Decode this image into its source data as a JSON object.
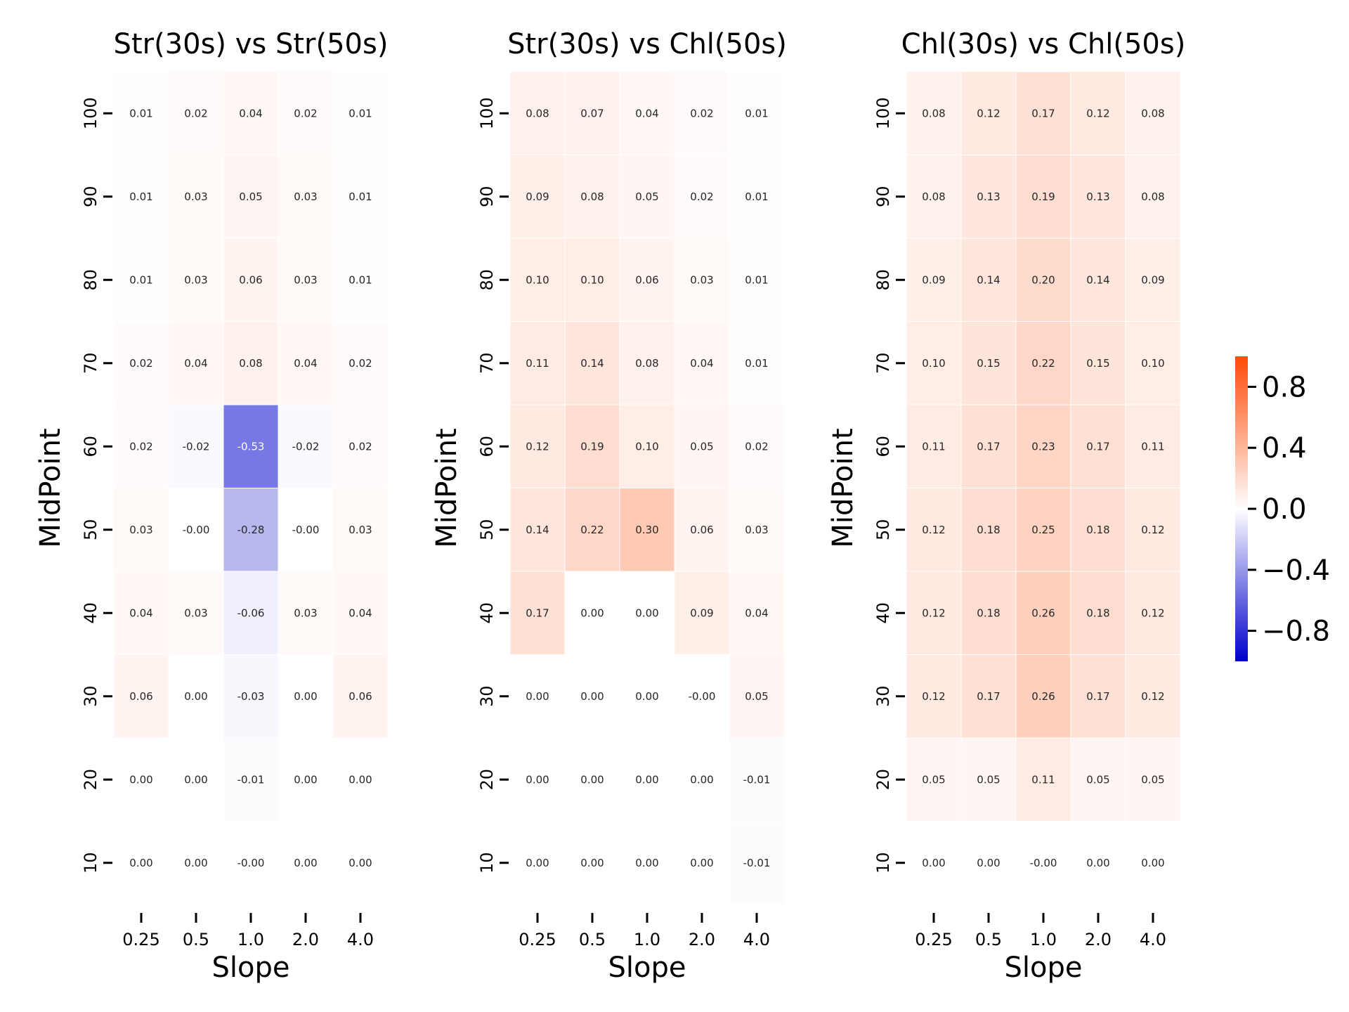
{
  "chart_data": {
    "type": "heatmap",
    "colorscale": {
      "colors": {
        "low": "#0000cc",
        "mid": "#ffffff",
        "high": "#ff4a06"
      },
      "vmin": -1.0,
      "vmax": 1.0,
      "ticks": [
        "0.8",
        "0.4",
        "0.0",
        "−0.4",
        "−0.8"
      ],
      "tick_values": [
        0.8,
        0.4,
        0.0,
        -0.4,
        -0.8
      ]
    },
    "panels": [
      {
        "title": "Str(30s) vs Str(50s)",
        "xlabel": "Slope",
        "ylabel": "MidPoint",
        "x": [
          "0.25",
          "0.5",
          "1.0",
          "2.0",
          "4.0"
        ],
        "y": [
          "100",
          "90",
          "80",
          "70",
          "60",
          "50",
          "40",
          "30",
          "20",
          "10"
        ],
        "values": [
          [
            0.01,
            0.02,
            0.04,
            0.02,
            0.01
          ],
          [
            0.01,
            0.03,
            0.05,
            0.03,
            0.01
          ],
          [
            0.01,
            0.03,
            0.06,
            0.03,
            0.01
          ],
          [
            0.02,
            0.04,
            0.08,
            0.04,
            0.02
          ],
          [
            0.02,
            -0.02,
            -0.53,
            -0.02,
            0.02
          ],
          [
            0.03,
            -0.0,
            -0.28,
            -0.0,
            0.03
          ],
          [
            0.04,
            0.03,
            -0.06,
            0.03,
            0.04
          ],
          [
            0.06,
            0.0,
            -0.03,
            0.0,
            0.06
          ],
          [
            0.0,
            0.0,
            -0.01,
            0.0,
            0.0
          ],
          [
            0.0,
            0.0,
            -0.0,
            0.0,
            0.0
          ]
        ],
        "labels": [
          [
            "0.01",
            "0.02",
            "0.04",
            "0.02",
            "0.01"
          ],
          [
            "0.01",
            "0.03",
            "0.05",
            "0.03",
            "0.01"
          ],
          [
            "0.01",
            "0.03",
            "0.06",
            "0.03",
            "0.01"
          ],
          [
            "0.02",
            "0.04",
            "0.08",
            "0.04",
            "0.02"
          ],
          [
            "0.02",
            "-0.02",
            "-0.53",
            "-0.02",
            "0.02"
          ],
          [
            "0.03",
            "-0.00",
            "-0.28",
            "-0.00",
            "0.03"
          ],
          [
            "0.04",
            "0.03",
            "-0.06",
            "0.03",
            "0.04"
          ],
          [
            "0.06",
            "0.00",
            "-0.03",
            "0.00",
            "0.06"
          ],
          [
            "0.00",
            "0.00",
            "-0.01",
            "0.00",
            "0.00"
          ],
          [
            "0.00",
            "0.00",
            "-0.00",
            "0.00",
            "0.00"
          ]
        ]
      },
      {
        "title": "Str(30s) vs Chl(50s)",
        "xlabel": "Slope",
        "ylabel": "MidPoint",
        "x": [
          "0.25",
          "0.5",
          "1.0",
          "2.0",
          "4.0"
        ],
        "y": [
          "100",
          "90",
          "80",
          "70",
          "60",
          "50",
          "40",
          "30",
          "20",
          "10"
        ],
        "values": [
          [
            0.08,
            0.07,
            0.04,
            0.02,
            0.01
          ],
          [
            0.09,
            0.08,
            0.05,
            0.02,
            0.01
          ],
          [
            0.1,
            0.1,
            0.06,
            0.03,
            0.01
          ],
          [
            0.11,
            0.14,
            0.08,
            0.04,
            0.01
          ],
          [
            0.12,
            0.19,
            0.1,
            0.05,
            0.02
          ],
          [
            0.14,
            0.22,
            0.3,
            0.06,
            0.03
          ],
          [
            0.17,
            0.0,
            0.0,
            0.09,
            0.04
          ],
          [
            0.0,
            0.0,
            0.0,
            -0.0,
            0.05
          ],
          [
            0.0,
            0.0,
            0.0,
            0.0,
            -0.01
          ],
          [
            0.0,
            0.0,
            0.0,
            0.0,
            -0.01
          ]
        ],
        "labels": [
          [
            "0.08",
            "0.07",
            "0.04",
            "0.02",
            "0.01"
          ],
          [
            "0.09",
            "0.08",
            "0.05",
            "0.02",
            "0.01"
          ],
          [
            "0.10",
            "0.10",
            "0.06",
            "0.03",
            "0.01"
          ],
          [
            "0.11",
            "0.14",
            "0.08",
            "0.04",
            "0.01"
          ],
          [
            "0.12",
            "0.19",
            "0.10",
            "0.05",
            "0.02"
          ],
          [
            "0.14",
            "0.22",
            "0.30",
            "0.06",
            "0.03"
          ],
          [
            "0.17",
            "0.00",
            "0.00",
            "0.09",
            "0.04"
          ],
          [
            "0.00",
            "0.00",
            "0.00",
            "-0.00",
            "0.05"
          ],
          [
            "0.00",
            "0.00",
            "0.00",
            "0.00",
            "-0.01"
          ],
          [
            "0.00",
            "0.00",
            "0.00",
            "0.00",
            "-0.01"
          ]
        ]
      },
      {
        "title": "Chl(30s) vs Chl(50s)",
        "xlabel": "Slope",
        "ylabel": "MidPoint",
        "x": [
          "0.25",
          "0.5",
          "1.0",
          "2.0",
          "4.0"
        ],
        "y": [
          "100",
          "90",
          "80",
          "70",
          "60",
          "50",
          "40",
          "30",
          "20",
          "10"
        ],
        "values": [
          [
            0.08,
            0.12,
            0.17,
            0.12,
            0.08
          ],
          [
            0.08,
            0.13,
            0.19,
            0.13,
            0.08
          ],
          [
            0.09,
            0.14,
            0.2,
            0.14,
            0.09
          ],
          [
            0.1,
            0.15,
            0.22,
            0.15,
            0.1
          ],
          [
            0.11,
            0.17,
            0.23,
            0.17,
            0.11
          ],
          [
            0.12,
            0.18,
            0.25,
            0.18,
            0.12
          ],
          [
            0.12,
            0.18,
            0.26,
            0.18,
            0.12
          ],
          [
            0.12,
            0.17,
            0.26,
            0.17,
            0.12
          ],
          [
            0.05,
            0.05,
            0.11,
            0.05,
            0.05
          ],
          [
            0.0,
            0.0,
            -0.0,
            0.0,
            0.0
          ]
        ],
        "labels": [
          [
            "0.08",
            "0.12",
            "0.17",
            "0.12",
            "0.08"
          ],
          [
            "0.08",
            "0.13",
            "0.19",
            "0.13",
            "0.08"
          ],
          [
            "0.09",
            "0.14",
            "0.20",
            "0.14",
            "0.09"
          ],
          [
            "0.10",
            "0.15",
            "0.22",
            "0.15",
            "0.10"
          ],
          [
            "0.11",
            "0.17",
            "0.23",
            "0.17",
            "0.11"
          ],
          [
            "0.12",
            "0.18",
            "0.25",
            "0.18",
            "0.12"
          ],
          [
            "0.12",
            "0.18",
            "0.26",
            "0.18",
            "0.12"
          ],
          [
            "0.12",
            "0.17",
            "0.26",
            "0.17",
            "0.12"
          ],
          [
            "0.05",
            "0.05",
            "0.11",
            "0.05",
            "0.05"
          ],
          [
            "0.00",
            "0.00",
            "-0.00",
            "0.00",
            "0.00"
          ]
        ]
      }
    ]
  }
}
